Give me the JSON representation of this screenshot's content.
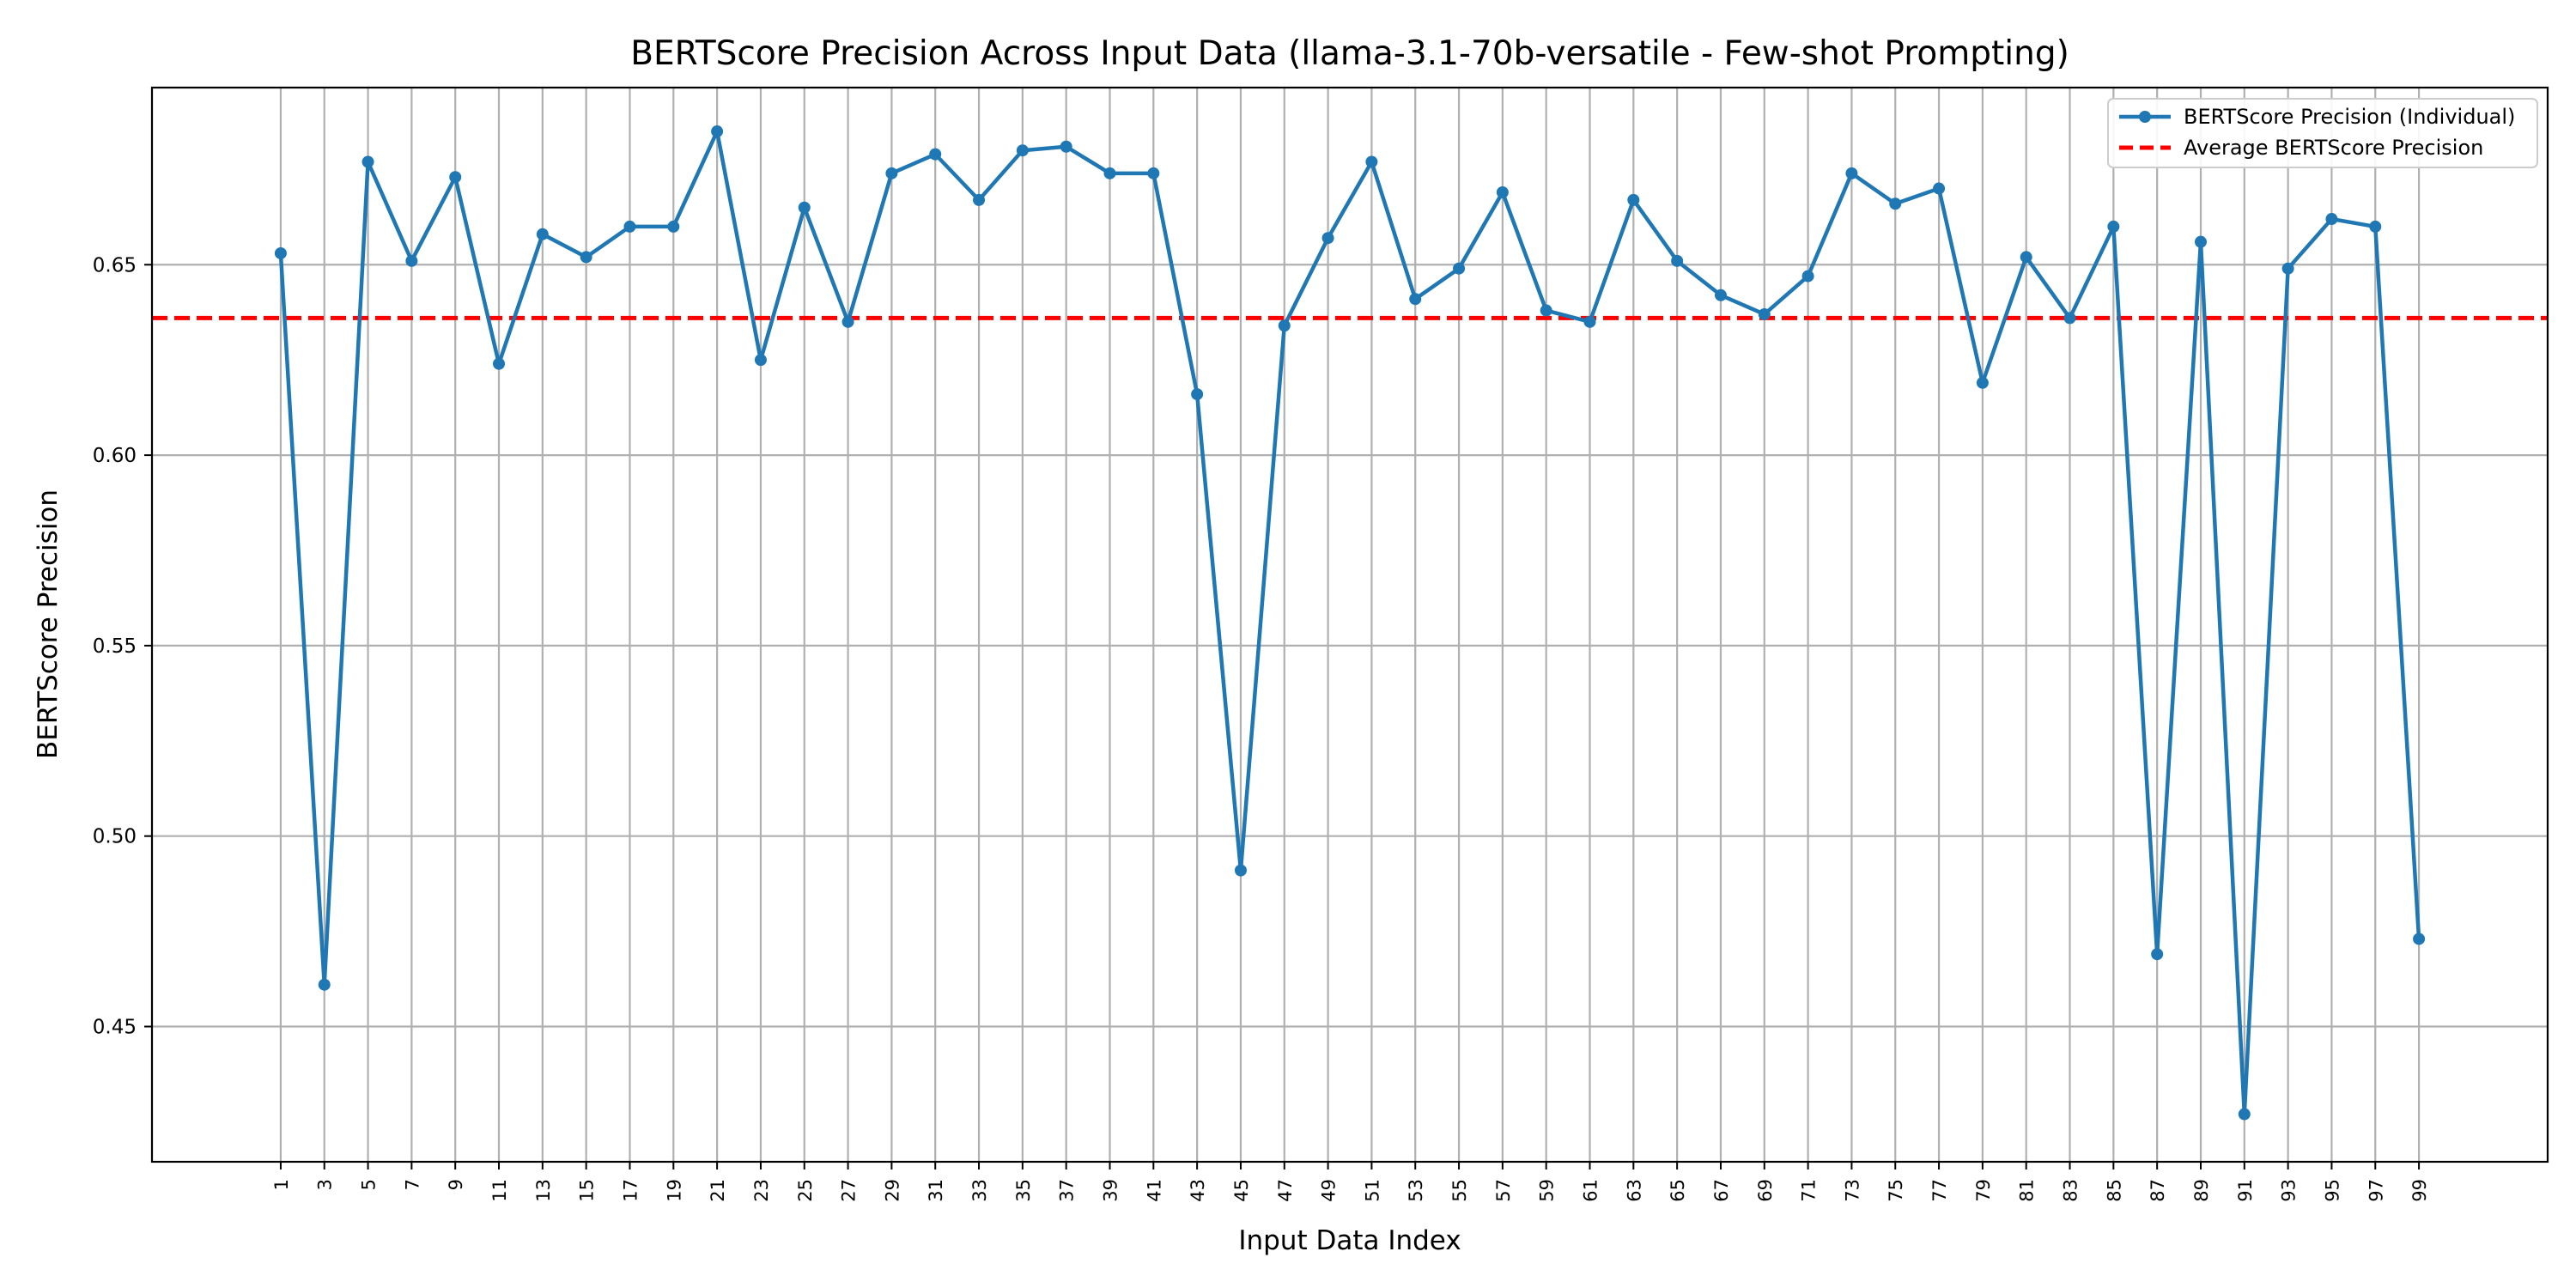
{
  "chart_data": {
    "type": "line",
    "title": "BERTScore Precision Across Input Data (llama-3.1-70b-versatile - Few-shot Prompting)",
    "xlabel": "Input Data Index",
    "ylabel": "BERTScore Precision",
    "x": [
      1,
      3,
      5,
      7,
      9,
      11,
      13,
      15,
      17,
      19,
      21,
      23,
      25,
      27,
      29,
      31,
      33,
      35,
      37,
      39,
      41,
      43,
      45,
      47,
      49,
      51,
      53,
      55,
      57,
      59,
      61,
      63,
      65,
      67,
      69,
      71,
      73,
      75,
      77,
      79,
      81,
      83,
      85,
      87,
      89,
      91,
      93,
      95,
      97,
      99
    ],
    "xticks": [
      "1",
      "3",
      "5",
      "7",
      "9",
      "11",
      "13",
      "15",
      "17",
      "19",
      "21",
      "23",
      "25",
      "27",
      "29",
      "31",
      "33",
      "35",
      "37",
      "39",
      "41",
      "43",
      "45",
      "47",
      "49",
      "51",
      "53",
      "55",
      "57",
      "59",
      "61",
      "63",
      "65",
      "67",
      "69",
      "71",
      "73",
      "75",
      "77",
      "79",
      "81",
      "83",
      "85",
      "87",
      "89",
      "91",
      "93",
      "95",
      "97",
      "99"
    ],
    "xlim": [
      -4.9,
      104.9
    ],
    "ylim": [
      0.4145,
      0.6965
    ],
    "yticks": [
      0.45,
      0.5,
      0.55,
      0.6,
      0.65
    ],
    "ytick_labels": [
      "0.45",
      "0.50",
      "0.55",
      "0.60",
      "0.65"
    ],
    "grid": true,
    "legend_position": "top-right",
    "series": [
      {
        "name": "BERTScore Precision (Individual)",
        "color": "#1f77b4",
        "style": "solid-with-markers",
        "values": [
          0.653,
          0.461,
          0.677,
          0.651,
          0.673,
          0.624,
          0.658,
          0.652,
          0.66,
          0.66,
          0.685,
          0.625,
          0.665,
          0.635,
          0.674,
          0.679,
          0.667,
          0.68,
          0.681,
          0.674,
          0.674,
          0.616,
          0.491,
          0.634,
          0.657,
          0.677,
          0.641,
          0.649,
          0.669,
          0.638,
          0.635,
          0.667,
          0.651,
          0.642,
          0.637,
          0.647,
          0.674,
          0.666,
          0.67,
          0.619,
          0.652,
          0.636,
          0.66,
          0.469,
          0.656,
          0.427,
          0.649,
          0.662,
          0.66,
          0.473
        ]
      }
    ],
    "reference_lines": [
      {
        "name": "Average BERTScore Precision",
        "color": "#ff0000",
        "style": "dashed",
        "y": 0.636
      }
    ]
  }
}
